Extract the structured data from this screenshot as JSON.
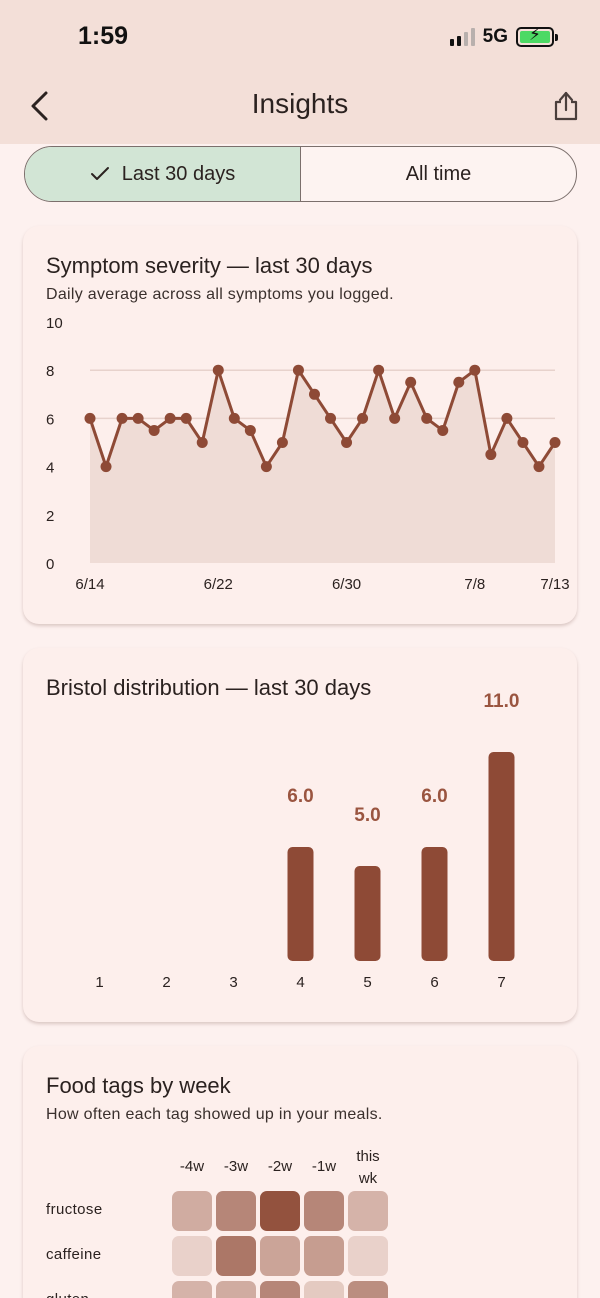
{
  "status_bar": {
    "time": "1:59",
    "network": "5G",
    "signal_bars_active": 2,
    "battery_charging": true
  },
  "nav": {
    "title": "Insights",
    "back_icon": "chevron-left-icon",
    "share_icon": "share-icon"
  },
  "range_toggle": {
    "options": [
      {
        "label": "Last 30 days",
        "selected": true
      },
      {
        "label": "All time",
        "selected": false
      }
    ]
  },
  "colors": {
    "accent": "#8e4a36",
    "fill": "#efdcd6",
    "selected_segment": "#d2e5d5"
  },
  "severity_card": {
    "title": "Symptom severity — last 30 days",
    "subtitle": "Daily average across all symptoms you logged.",
    "chart_data": {
      "type": "area",
      "x_tick_labels": [
        "6/14",
        "6/22",
        "6/30",
        "7/8",
        "7/13"
      ],
      "y_tick_labels": [
        "0",
        "2",
        "4",
        "6",
        "8",
        "10"
      ],
      "ylim": [
        0,
        10
      ],
      "x": [
        "6/14",
        "6/15",
        "6/16",
        "6/17",
        "6/18",
        "6/19",
        "6/20",
        "6/21",
        "6/22",
        "6/23",
        "6/24",
        "6/25",
        "6/26",
        "6/27",
        "6/28",
        "6/29",
        "6/30",
        "7/1",
        "7/2",
        "7/3",
        "7/4",
        "7/5",
        "7/6",
        "7/7",
        "7/8",
        "7/9",
        "7/10",
        "7/11",
        "7/12",
        "7/13"
      ],
      "values": [
        6,
        4,
        6,
        6,
        5.5,
        6,
        6,
        5,
        8,
        6,
        5.5,
        4,
        5,
        8,
        7,
        6,
        5,
        6,
        8,
        6,
        7.5,
        6,
        5.5,
        7.5,
        8,
        4.5,
        6,
        5,
        4,
        5
      ],
      "grid": true
    }
  },
  "bristol_card": {
    "title": "Bristol distribution — last 30 days",
    "chart_data": {
      "type": "bar",
      "categories": [
        "1",
        "2",
        "3",
        "4",
        "5",
        "6",
        "7"
      ],
      "values": [
        0,
        0,
        0,
        6.0,
        5.0,
        6.0,
        11.0
      ],
      "value_labels": [
        "",
        "",
        "",
        "6.0",
        "5.0",
        "6.0",
        "11.0"
      ]
    }
  },
  "food_card": {
    "title": "Food tags by week",
    "subtitle": "How often each tag showed up in your meals.",
    "chart_data": {
      "type": "heatmap",
      "columns": [
        "-4w",
        "-3w",
        "-2w",
        "-1w",
        "this wk"
      ],
      "rows": [
        {
          "name": "fructose",
          "levels": [
            0.35,
            0.6,
            0.95,
            0.6,
            0.3
          ]
        },
        {
          "name": "caffeine",
          "levels": [
            0.1,
            0.7,
            0.4,
            0.45,
            0.1
          ]
        },
        {
          "name": "gluten",
          "levels": [
            0.3,
            0.35,
            0.6,
            0.15,
            0.55
          ]
        }
      ]
    }
  }
}
